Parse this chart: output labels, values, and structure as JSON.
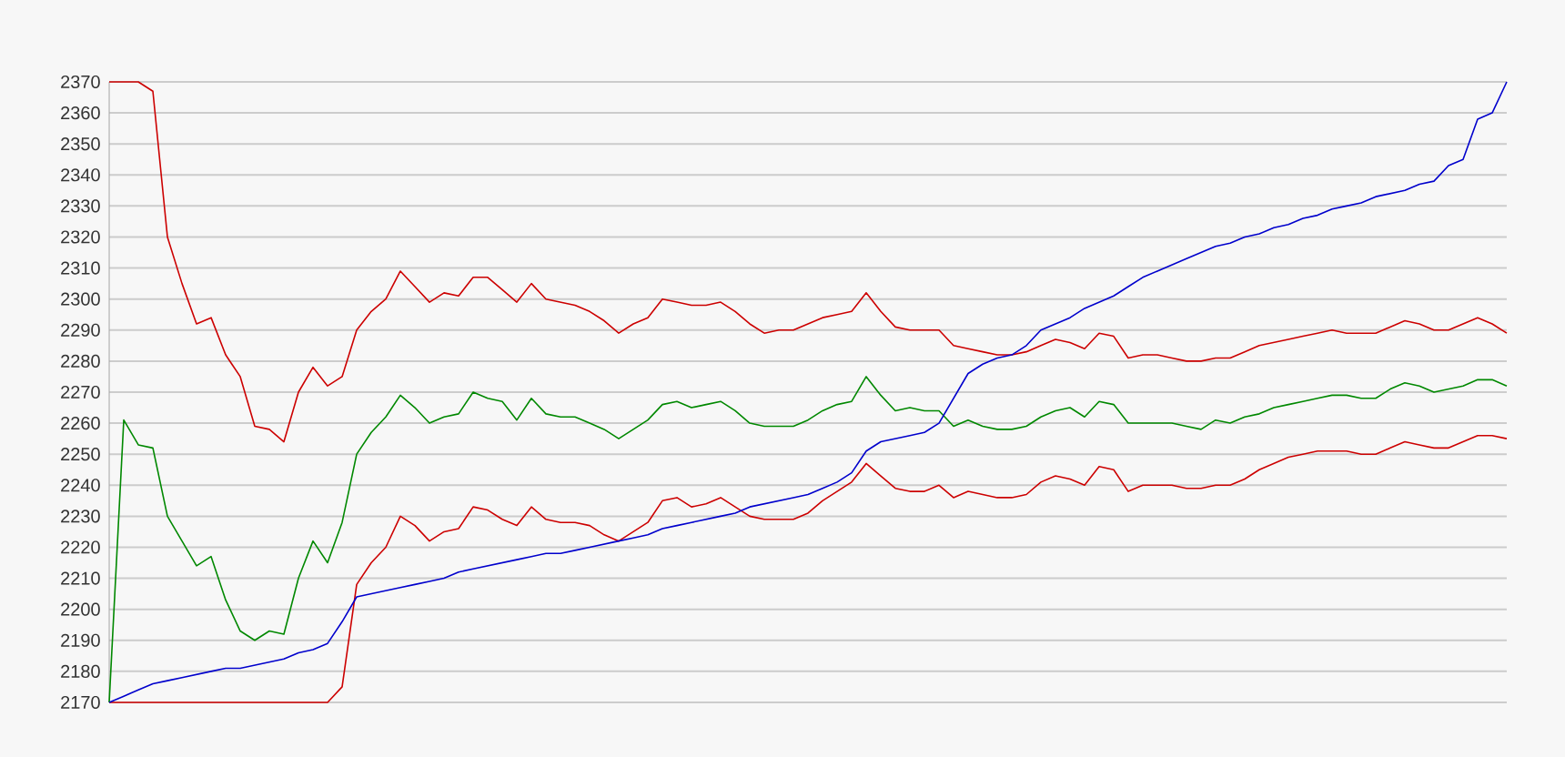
{
  "chart_data": {
    "type": "line",
    "grid": "y",
    "categories": [
      null,
      null,
      null,
      null,
      null,
      null,
      null,
      null,
      null,
      null,
      null,
      null,
      null,
      null,
      null,
      null,
      null,
      null,
      null,
      null,
      null,
      null,
      null,
      null,
      null,
      null,
      null,
      null,
      null,
      null,
      null,
      null,
      null,
      null,
      null,
      null,
      null,
      null,
      null,
      null,
      null,
      null,
      null,
      null,
      null,
      null,
      null,
      null,
      null,
      null,
      null,
      null,
      null,
      null,
      null,
      null,
      null,
      null,
      null,
      null,
      null,
      null,
      null,
      null,
      null,
      null,
      null,
      null,
      null,
      null,
      null,
      null,
      null,
      null,
      null,
      null,
      null,
      null,
      null,
      null,
      null,
      null,
      null,
      null,
      null,
      null,
      null,
      null,
      null,
      null,
      null,
      null,
      null,
      null,
      null,
      null,
      null
    ],
    "ylim": [
      2170,
      2370
    ],
    "yticks": [
      2170,
      2180,
      2190,
      2200,
      2210,
      2220,
      2230,
      2240,
      2250,
      2260,
      2270,
      2280,
      2290,
      2300,
      2310,
      2320,
      2330,
      2340,
      2350,
      2360,
      2370
    ],
    "series": [
      {
        "color": "#cc0000",
        "values": [
          2370,
          2370,
          2370,
          2367,
          2320,
          2305,
          2292,
          2294,
          2282,
          2275,
          2259,
          2258,
          2254,
          2270,
          2278,
          2272,
          2275,
          2290,
          2296,
          2300,
          2309,
          2304,
          2299,
          2302,
          2301,
          2307,
          2307,
          2303,
          2299,
          2305,
          2300,
          2299,
          2298,
          2296,
          2293,
          2289,
          2292,
          2294,
          2300,
          2299,
          2298,
          2298,
          2299,
          2296,
          2292,
          2289,
          2290,
          2290,
          2292,
          2294,
          2295,
          2296,
          2302,
          2296,
          2291,
          2290,
          2290,
          2290,
          2285,
          2284,
          2283,
          2282,
          2282,
          2283,
          2285,
          2287,
          2286,
          2284,
          2289,
          2288,
          2281,
          2282,
          2282,
          2281,
          2280,
          2280,
          2281,
          2281,
          2283,
          2285,
          2286,
          2287,
          2288,
          2289,
          2290,
          2289,
          2289,
          2289,
          2291,
          2293,
          2292,
          2290,
          2290,
          2292,
          2294,
          2292,
          2289
        ]
      },
      {
        "color": "#008800",
        "values": [
          2170,
          2261,
          2253,
          2252,
          2230,
          2222,
          2214,
          2217,
          2203,
          2193,
          2190,
          2193,
          2192,
          2210,
          2222,
          2215,
          2228,
          2250,
          2257,
          2262,
          2269,
          2265,
          2260,
          2262,
          2263,
          2270,
          2268,
          2267,
          2261,
          2268,
          2263,
          2262,
          2262,
          2260,
          2258,
          2255,
          2258,
          2261,
          2266,
          2267,
          2265,
          2266,
          2267,
          2264,
          2260,
          2259,
          2259,
          2259,
          2261,
          2264,
          2266,
          2267,
          2275,
          2269,
          2264,
          2265,
          2264,
          2264,
          2259,
          2261,
          2259,
          2258,
          2258,
          2259,
          2262,
          2264,
          2265,
          2262,
          2267,
          2266,
          2260,
          2260,
          2260,
          2260,
          2259,
          2258,
          2261,
          2260,
          2262,
          2263,
          2265,
          2266,
          2267,
          2268,
          2269,
          2269,
          2268,
          2268,
          2271,
          2273,
          2272,
          2270,
          2271,
          2272,
          2274,
          2274,
          2272
        ]
      },
      {
        "color": "#cc0000",
        "values": [
          2170,
          2170,
          2170,
          2170,
          2170,
          2170,
          2170,
          2170,
          2170,
          2170,
          2170,
          2170,
          2170,
          2170,
          2170,
          2170,
          2175,
          2208,
          2215,
          2220,
          2230,
          2227,
          2222,
          2225,
          2226,
          2233,
          2232,
          2229,
          2227,
          2233,
          2229,
          2228,
          2228,
          2227,
          2224,
          2222,
          2225,
          2228,
          2235,
          2236,
          2233,
          2234,
          2236,
          2233,
          2230,
          2229,
          2229,
          2229,
          2231,
          2235,
          2238,
          2241,
          2247,
          2243,
          2239,
          2238,
          2238,
          2240,
          2236,
          2238,
          2237,
          2236,
          2236,
          2237,
          2241,
          2243,
          2242,
          2240,
          2246,
          2245,
          2238,
          2240,
          2240,
          2240,
          2239,
          2239,
          2240,
          2240,
          2242,
          2245,
          2247,
          2249,
          2250,
          2251,
          2251,
          2251,
          2250,
          2250,
          2252,
          2254,
          2253,
          2252,
          2252,
          2254,
          2256,
          2256,
          2255
        ]
      },
      {
        "color": "#0000cc",
        "values": [
          2170,
          2172,
          2174,
          2176,
          2177,
          2178,
          2179,
          2180,
          2181,
          2181,
          2182,
          2183,
          2184,
          2186,
          2187,
          2189,
          2196,
          2204,
          2205,
          2206,
          2207,
          2208,
          2209,
          2210,
          2212,
          2213,
          2214,
          2215,
          2216,
          2217,
          2218,
          2218,
          2219,
          2220,
          2221,
          2222,
          2223,
          2224,
          2226,
          2227,
          2228,
          2229,
          2230,
          2231,
          2233,
          2234,
          2235,
          2236,
          2237,
          2239,
          2241,
          2244,
          2251,
          2254,
          2255,
          2256,
          2257,
          2260,
          2268,
          2276,
          2279,
          2281,
          2282,
          2285,
          2290,
          2292,
          2294,
          2297,
          2299,
          2301,
          2304,
          2307,
          2309,
          2311,
          2313,
          2315,
          2317,
          2318,
          2320,
          2321,
          2323,
          2324,
          2326,
          2327,
          2329,
          2330,
          2331,
          2333,
          2334,
          2335,
          2337,
          2338,
          2343,
          2345,
          2358,
          2360,
          2370
        ]
      }
    ]
  }
}
